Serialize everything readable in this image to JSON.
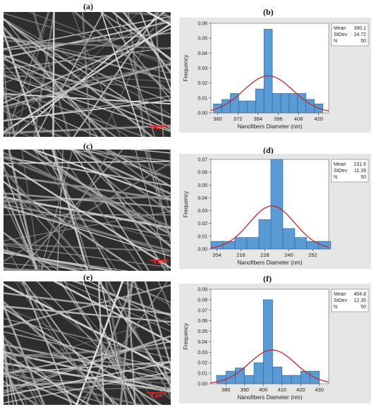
{
  "figure": {
    "labels": [
      "(a)",
      "(b)",
      "(c)",
      "(d)",
      "(e)",
      "(f)"
    ],
    "scale_bar_label": "2 μm"
  },
  "chart_data": [
    {
      "type": "bar",
      "panel": "(b)",
      "xlabel": "Nanofibers Diameter (nm)",
      "ylabel": "Frequency",
      "xlim": [
        356,
        426
      ],
      "ylim": [
        0,
        0.06
      ],
      "xticks": [
        360,
        372,
        384,
        396,
        408,
        420
      ],
      "yticks": [
        0.0,
        0.01,
        0.02,
        0.03,
        0.04,
        0.05,
        0.06
      ],
      "ytick_labels": [
        "0.00",
        "0.01",
        "0.02",
        "0.03",
        "0.04",
        "0.05",
        "0.06"
      ],
      "bin_width": 5,
      "bin_starts": [
        357.5,
        362.5,
        367.5,
        372.5,
        377.5,
        382.5,
        387.5,
        392.5,
        397.5,
        402.5,
        407.5,
        412.5,
        417.5
      ],
      "values": [
        0.006,
        0.009,
        0.013,
        0.008,
        0.008,
        0.016,
        0.056,
        0.013,
        0.013,
        0.013,
        0.013,
        0.009,
        0.006
      ],
      "normal_fit": {
        "mean": 390.1,
        "sd": 14.72
      },
      "stats": {
        "labels": [
          "Mean",
          "StDev",
          "N"
        ],
        "values": [
          "390.1",
          "14.72",
          "50"
        ]
      },
      "colors": {
        "bar": "#5b9bd5",
        "bar_edge": "#2c5f8a",
        "curve": "#c0282d",
        "background": "#e6e6e6",
        "plot": "#ffffff"
      }
    },
    {
      "type": "bar",
      "panel": "(d)",
      "xlabel": "Nanofibers Diameter (nm)",
      "ylabel": "Frequency",
      "xlim": [
        201,
        260
      ],
      "ylim": [
        0,
        0.07
      ],
      "xticks": [
        204,
        216,
        228,
        240,
        252
      ],
      "yticks": [
        0.0,
        0.01,
        0.02,
        0.03,
        0.04,
        0.05,
        0.06,
        0.07
      ],
      "ytick_labels": [
        "0.00",
        "0.01",
        "0.02",
        "0.03",
        "0.04",
        "0.05",
        "0.06",
        "0.07"
      ],
      "bin_width": 6,
      "bin_starts": [
        201,
        207,
        213,
        219,
        225,
        231,
        237,
        243,
        249,
        255
      ],
      "values": [
        0.006,
        0.006,
        0.009,
        0.009,
        0.023,
        0.07,
        0.016,
        0.009,
        0.006,
        0.006
      ],
      "normal_fit": {
        "mean": 231.6,
        "sd": 11.39
      },
      "stats": {
        "labels": [
          "Mean",
          "StDev",
          "N"
        ],
        "values": [
          "231.6",
          "11.39",
          "50"
        ]
      },
      "colors": {
        "bar": "#5b9bd5",
        "bar_edge": "#2c5f8a",
        "curve": "#c0282d",
        "background": "#e6e6e6",
        "plot": "#ffffff"
      }
    },
    {
      "type": "bar",
      "panel": "(f)",
      "xlabel": "Nanofibers Diameter (nm)",
      "ylabel": "Frequency",
      "xlim": [
        372,
        435
      ],
      "ylim": [
        0,
        0.09
      ],
      "xticks": [
        380,
        390,
        400,
        410,
        420,
        430
      ],
      "yticks": [
        0.0,
        0.01,
        0.02,
        0.03,
        0.04,
        0.05,
        0.06,
        0.07,
        0.08,
        0.09
      ],
      "ytick_labels": [
        "0.00",
        "0.01",
        "0.02",
        "0.03",
        "0.04",
        "0.05",
        "0.06",
        "0.07",
        "0.08",
        "0.09"
      ],
      "bin_width": 5,
      "bin_starts": [
        375,
        380,
        385,
        390,
        395,
        400,
        405,
        410,
        415,
        420,
        425
      ],
      "values": [
        0.008,
        0.012,
        0.015,
        0.008,
        0.02,
        0.08,
        0.016,
        0.008,
        0.008,
        0.012,
        0.012
      ],
      "normal_fit": {
        "mean": 404.8,
        "sd": 12.35
      },
      "stats": {
        "labels": [
          "Mean",
          "StDev",
          "N"
        ],
        "values": [
          "404.8",
          "12.35",
          "50"
        ]
      },
      "colors": {
        "bar": "#5b9bd5",
        "bar_edge": "#2c5f8a",
        "curve": "#c0282d",
        "background": "#e6e6e6",
        "plot": "#ffffff"
      }
    }
  ]
}
